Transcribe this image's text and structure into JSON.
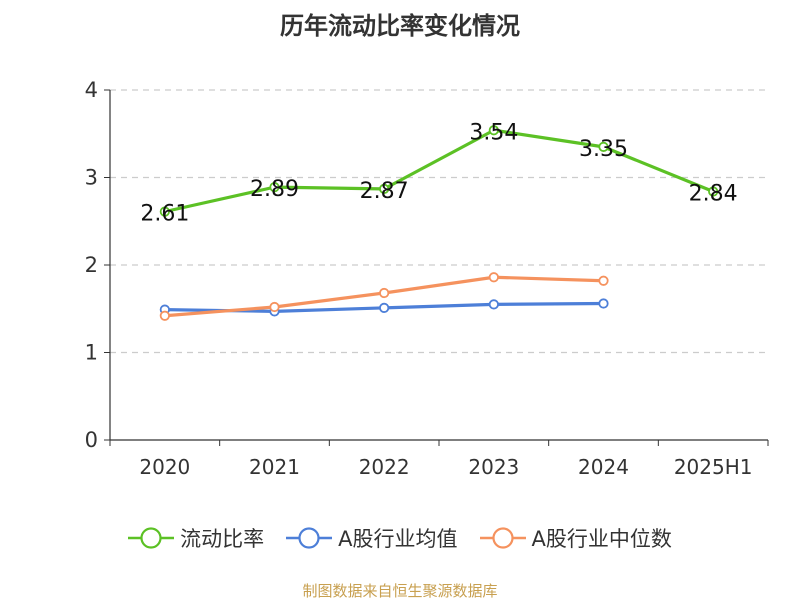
{
  "title": "历年流动比率变化情况",
  "source": "制图数据来自恒生聚源数据库",
  "chart_data": {
    "type": "line",
    "categories": [
      "2020",
      "2021",
      "2022",
      "2023",
      "2024",
      "2025H1"
    ],
    "ylim": [
      0,
      4
    ],
    "yticks": [
      "0",
      "1",
      "2",
      "3",
      "4"
    ],
    "grid": true,
    "legend_position": "bottom",
    "series": [
      {
        "name": "流动比率",
        "color": "#5cc125",
        "values": [
          2.61,
          2.89,
          2.87,
          3.54,
          3.35,
          2.84
        ],
        "labels": [
          "2.61",
          "2.89",
          "2.87",
          "3.54",
          "3.35",
          "2.84"
        ]
      },
      {
        "name": "A股行业均值",
        "color": "#4d7fd8",
        "values": [
          1.49,
          1.47,
          1.51,
          1.55,
          1.56,
          null
        ]
      },
      {
        "name": "A股行业中位数",
        "color": "#f5925e",
        "values": [
          1.42,
          1.52,
          1.68,
          1.86,
          1.82,
          null
        ]
      }
    ]
  }
}
